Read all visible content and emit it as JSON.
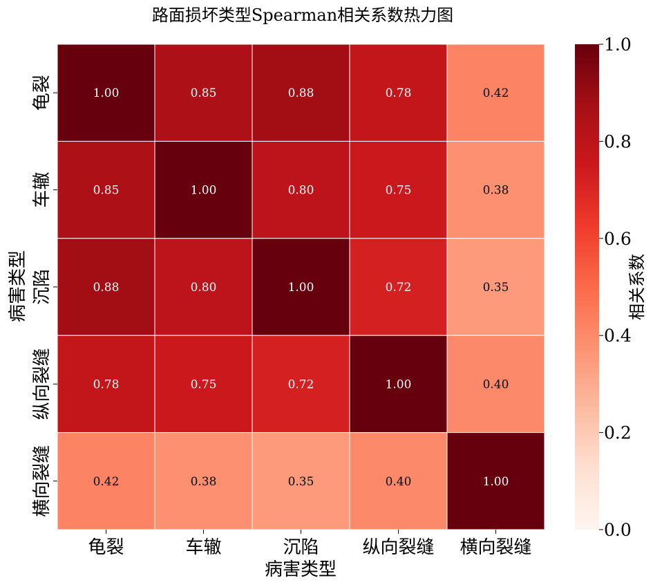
{
  "chart_data": {
    "type": "heatmap",
    "title": "路面损坏类型Spearman相关系数热力图",
    "xlabel": "病害类型",
    "ylabel": "病害类型",
    "categories": [
      "龟裂",
      "车辙",
      "沉陷",
      "纵向裂缝",
      "横向裂缝"
    ],
    "matrix": [
      [
        1.0,
        0.85,
        0.88,
        0.78,
        0.42
      ],
      [
        0.85,
        1.0,
        0.8,
        0.75,
        0.38
      ],
      [
        0.88,
        0.8,
        1.0,
        0.72,
        0.35
      ],
      [
        0.78,
        0.75,
        0.72,
        1.0,
        0.4
      ],
      [
        0.42,
        0.38,
        0.35,
        0.4,
        1.0
      ]
    ],
    "value_format": "0.00",
    "colormap": "Reds",
    "vmin": 0.0,
    "vmax": 1.0,
    "colorbar": {
      "label": "相关系数",
      "ticks": [
        "0.0",
        "0.2",
        "0.4",
        "0.6",
        "0.8",
        "1.0"
      ]
    },
    "grid": false,
    "legend_placement": "right"
  }
}
